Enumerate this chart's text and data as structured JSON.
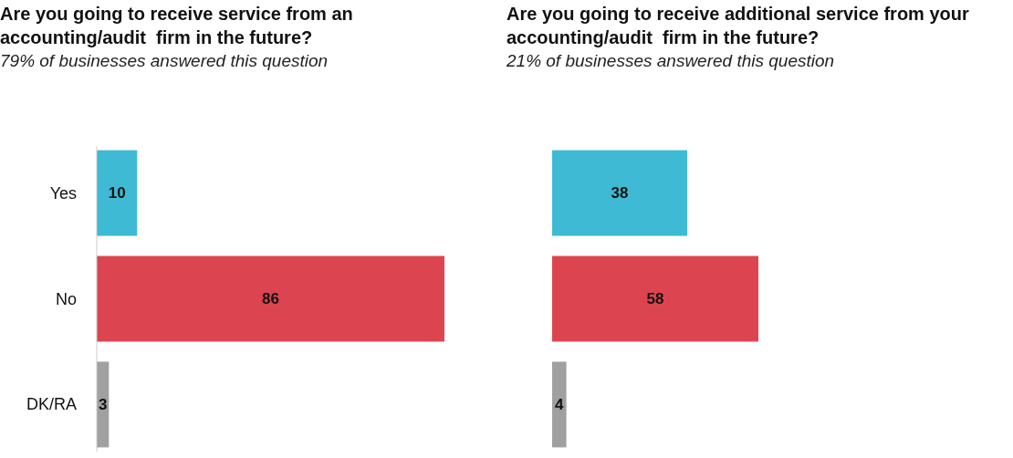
{
  "chart_data": [
    {
      "type": "bar",
      "orientation": "horizontal",
      "title": "Are you going to receive service from an accounting/audit  firm in the future?",
      "subtitle": "79% of businesses answered this question",
      "categories": [
        "Yes",
        "No",
        "DK/RA"
      ],
      "values": [
        10,
        86,
        3
      ],
      "colors": [
        "#3fbad4",
        "#dc4550",
        "#a0a0a0"
      ],
      "xlim": [
        0,
        86
      ],
      "data_labels": true,
      "tick_labels": "y"
    },
    {
      "type": "bar",
      "orientation": "horizontal",
      "title": "Are you going to receive additional service from your accounting/audit  firm in the future?",
      "subtitle": "21% of businesses answered this question",
      "categories": [
        null,
        null,
        null
      ],
      "values": [
        38,
        58,
        4
      ],
      "colors": [
        "#3fbad4",
        "#dc4550",
        "#a0a0a0"
      ],
      "xlim": [
        0,
        58
      ],
      "data_labels": true,
      "tick_labels": false
    }
  ]
}
